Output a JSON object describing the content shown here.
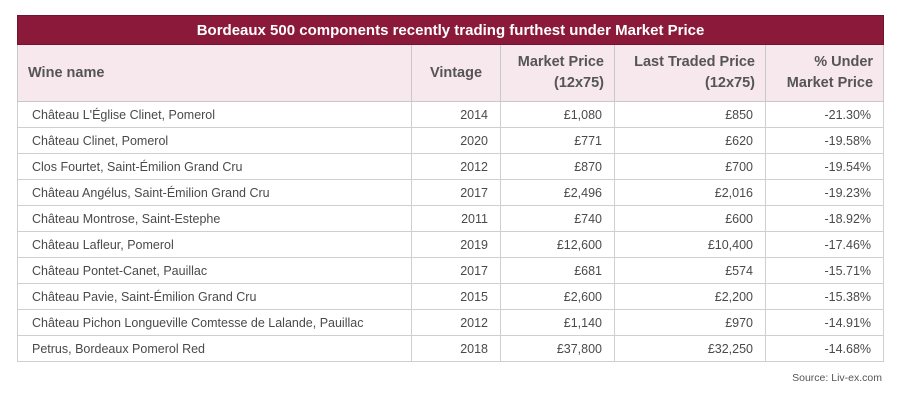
{
  "table": {
    "title": "Bordeaux 500 components recently trading furthest under Market Price",
    "headers": {
      "wine_name": "Wine name",
      "vintage": "Vintage",
      "market_price_l1": "Market Price",
      "market_price_l2": "(12x75)",
      "last_traded_l1": "Last Traded Price",
      "last_traded_l2": "(12x75)",
      "under_l1": "% Under",
      "under_l2": "Market Price"
    },
    "rows": [
      {
        "name": "Château L'Église Clinet, Pomerol",
        "vintage": "2014",
        "market": "£1,080",
        "traded": "£850",
        "under": "-21.30%"
      },
      {
        "name": "Château Clinet, Pomerol",
        "vintage": "2020",
        "market": "£771",
        "traded": "£620",
        "under": "-19.58%"
      },
      {
        "name": "Clos Fourtet, Saint-Émilion Grand Cru",
        "vintage": "2012",
        "market": "£870",
        "traded": "£700",
        "under": "-19.54%"
      },
      {
        "name": "Château Angélus, Saint-Émilion Grand Cru",
        "vintage": "2017",
        "market": "£2,496",
        "traded": "£2,016",
        "under": "-19.23%"
      },
      {
        "name": "Château Montrose, Saint-Estephe",
        "vintage": "2011",
        "market": "£740",
        "traded": "£600",
        "under": "-18.92%"
      },
      {
        "name": "Château Lafleur, Pomerol",
        "vintage": "2019",
        "market": "£12,600",
        "traded": "£10,400",
        "under": "-17.46%"
      },
      {
        "name": "Château Pontet-Canet, Pauillac",
        "vintage": "2017",
        "market": "£681",
        "traded": "£574",
        "under": "-15.71%"
      },
      {
        "name": "Château Pavie, Saint-Émilion Grand Cru",
        "vintage": "2015",
        "market": "£2,600",
        "traded": "£2,200",
        "under": "-15.38%"
      },
      {
        "name": "Château Pichon Longueville Comtesse de Lalande, Pauillac",
        "vintage": "2012",
        "market": "£1,140",
        "traded": "£970",
        "under": "-14.91%"
      },
      {
        "name": "Petrus, Bordeaux Pomerol Red",
        "vintage": "2018",
        "market": "£37,800",
        "traded": "£32,250",
        "under": "-14.68%"
      }
    ]
  },
  "source": "Source: Liv-ex.com",
  "colors": {
    "title_background": "#8b1a3a",
    "header_background": "#f6e8ec"
  }
}
